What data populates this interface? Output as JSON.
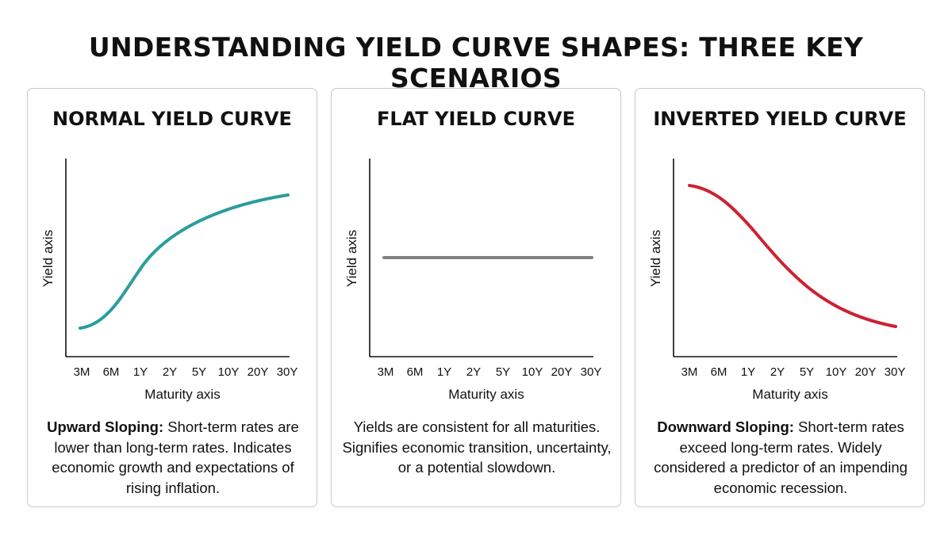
{
  "title": "UNDERSTANDING YIELD CURVE SHAPES: THREE KEY SCENARIOS",
  "chart_data": [
    {
      "type": "line",
      "title": "NORMAL YIELD CURVE",
      "xlabel": "Maturity axis",
      "ylabel": "Yield axis",
      "categories": [
        "3M",
        "6M",
        "1Y",
        "2Y",
        "5Y",
        "10Y",
        "20Y",
        "30Y"
      ],
      "shape": "upward",
      "color": "#2a9d9d",
      "desc_bold": "Upward Sloping:",
      "desc_text": " Short-term rates are lower than long-term rates. Indicates economic growth and expectations of rising inflation."
    },
    {
      "type": "line",
      "title": "FLAT YIELD CURVE",
      "xlabel": "Maturity axis",
      "ylabel": "Yield axis",
      "categories": [
        "3M",
        "6M",
        "1Y",
        "2Y",
        "5Y",
        "10Y",
        "20Y",
        "30Y"
      ],
      "shape": "flat",
      "color": "#808080",
      "desc_bold": "",
      "desc_text": "Yields are consistent for all maturities. Signifies economic transition, uncertainty, or a potential slowdown."
    },
    {
      "type": "line",
      "title": "INVERTED YIELD CURVE",
      "xlabel": "Maturity axis",
      "ylabel": "Yield axis",
      "categories": [
        "3M",
        "6M",
        "1Y",
        "2Y",
        "5Y",
        "10Y",
        "20Y",
        "30Y"
      ],
      "shape": "downward",
      "color": "#cc2233",
      "desc_bold": "Downward Sloping:",
      "desc_text": " Short-term rates exceed long-term rates. Widely considered a predictor of an impending economic recession."
    }
  ]
}
